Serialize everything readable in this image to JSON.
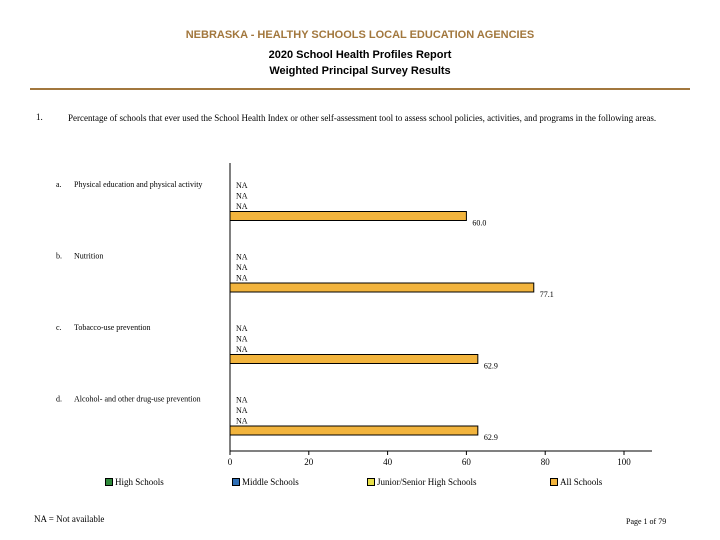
{
  "header": {
    "title": "NEBRASKA - HEALTHY SCHOOLS LOCAL EDUCATION AGENCIES",
    "subtitle1": "2020 School Health Profiles Report",
    "subtitle2": "Weighted Principal Survey Results"
  },
  "question": {
    "number": "1.",
    "text": "Percentage of schools that ever used the School Health Index or other self-assessment tool to assess school policies, activities, and programs in the following areas."
  },
  "colors": {
    "high_schools": "#2f8a3b",
    "middle_schools": "#2f6fb6",
    "junior_senior": "#e8e04a",
    "all_schools": "#f2b43d",
    "accent": "#a2773d"
  },
  "chart_data": {
    "type": "bar",
    "orientation": "horizontal",
    "xlim": [
      0,
      100
    ],
    "xticks": [
      0,
      20,
      40,
      60,
      80,
      100
    ],
    "grid": false,
    "legend_position": "bottom",
    "categories": [
      {
        "letter": "a.",
        "label": "Physical education and physical activity"
      },
      {
        "letter": "b.",
        "label": "Nutrition"
      },
      {
        "letter": "c.",
        "label": "Tobacco-use prevention"
      },
      {
        "letter": "d.",
        "label": "Alcohol- and other drug-use prevention"
      }
    ],
    "series": [
      {
        "name": "High Schools",
        "values": [
          "NA",
          "NA",
          "NA",
          "NA"
        ]
      },
      {
        "name": "Middle Schools",
        "values": [
          "NA",
          "NA",
          "NA",
          "NA"
        ]
      },
      {
        "name": "Junior/Senior High Schools",
        "values": [
          "NA",
          "NA",
          "NA",
          "NA"
        ]
      },
      {
        "name": "All Schools",
        "values": [
          60.0,
          77.1,
          62.9,
          62.9
        ],
        "labels": [
          "60.0",
          "77.1",
          "62.9",
          "62.9"
        ]
      }
    ]
  },
  "footer": {
    "na_note": "NA = Not available",
    "page": "Page 1 of 79"
  }
}
